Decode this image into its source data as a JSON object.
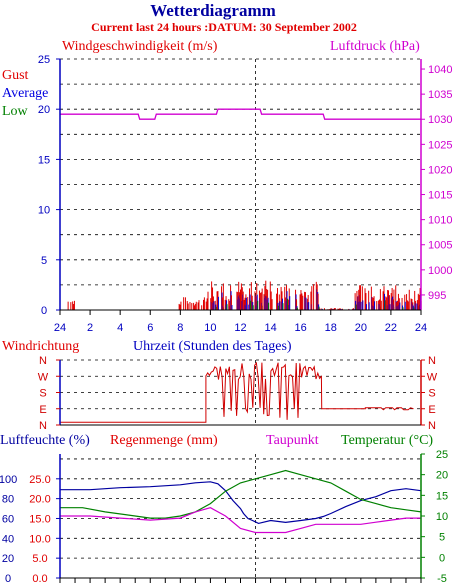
{
  "title": "Wetterdiagramm",
  "subtitle": "Current last 24 hours :DATUM: 30 September 2002",
  "colors": {
    "wind_gust": "#e00000",
    "wind_average": "#0000e0",
    "wind_low": "#008000",
    "pressure": "#d000d0",
    "direction": "#d00000",
    "humidity": "#0000a0",
    "rain": "#e00000",
    "dewpoint": "#d000d0",
    "temperature": "#008000",
    "axis_blue": "#0000c0",
    "axis_red": "#d00000"
  },
  "chart_data": [
    {
      "type": "line",
      "panel": "wind",
      "title_left": "Windgeschwindigkeit (m/s)",
      "title_right": "Luftdruck (hPa)",
      "legend": [
        "Gust",
        "Average",
        "Low"
      ],
      "x_ticks": [
        "24",
        "2",
        "4",
        "6",
        "8",
        "10",
        "12",
        "14",
        "16",
        "18",
        "20",
        "22",
        "24"
      ],
      "x_range": [
        0,
        24
      ],
      "ylim_left": [
        0,
        25
      ],
      "y_ticks_left": [
        "0",
        "5",
        "10",
        "15",
        "20",
        "25"
      ],
      "ylim_right": [
        992,
        1042
      ],
      "y_ticks_right": [
        "995",
        "1000",
        "1005",
        "1010",
        "1015",
        "1020",
        "1025",
        "1030",
        "1035",
        "1040"
      ],
      "grid": true,
      "series": [
        {
          "name": "Luftdruck",
          "axis": "right",
          "points": [
            [
              0,
              1031.0
            ],
            [
              5.2,
              1031.0
            ],
            [
              5.3,
              1030.0
            ],
            [
              6.3,
              1030.0
            ],
            [
              6.4,
              1031.0
            ],
            [
              10.4,
              1031.0
            ],
            [
              10.5,
              1032.0
            ],
            [
              13.3,
              1032.0
            ],
            [
              13.4,
              1031.0
            ],
            [
              17.5,
              1031.0
            ],
            [
              17.6,
              1030.0
            ],
            [
              24,
              1030.0
            ]
          ]
        }
      ]
    },
    {
      "type": "line",
      "panel": "direction",
      "title_left": "Windrichtung",
      "x_axis_label": "Uhrzeit (Stunden des Tages)",
      "categories": [
        "N",
        "W",
        "S",
        "E",
        "N"
      ],
      "grid": true
    },
    {
      "type": "line",
      "panel": "climate",
      "title_humidity": "Luftfeuchte (%)",
      "title_rain": "Regenmenge (mm)",
      "title_dewpoint": "Taupunkt",
      "title_temperature": "Temperatur (°C)",
      "y_ticks_humidity": [
        "0",
        "20",
        "40",
        "60",
        "80",
        "100"
      ],
      "y_ticks_rain": [
        "0.0",
        "5.0",
        "10.0",
        "15.0",
        "20.0",
        "25.0"
      ],
      "y_ticks_temperature": [
        "-5",
        "0",
        "5",
        "10",
        "15",
        "20",
        "25"
      ],
      "ylim_humidity": [
        0,
        125
      ],
      "ylim_temperature": [
        -5,
        25
      ],
      "grid": true,
      "series": [
        {
          "name": "Luftfeuchte",
          "axis": "humidity",
          "points": [
            [
              0,
              89
            ],
            [
              2,
              89
            ],
            [
              4,
              91
            ],
            [
              6,
              92
            ],
            [
              8,
              94
            ],
            [
              9,
              96
            ],
            [
              10,
              97
            ],
            [
              10.5,
              95
            ],
            [
              11,
              88
            ],
            [
              11.5,
              78
            ],
            [
              12,
              70
            ],
            [
              12.2,
              65
            ],
            [
              12.5,
              60
            ],
            [
              12.8,
              58
            ],
            [
              13.2,
              55
            ],
            [
              14,
              58
            ],
            [
              15,
              56
            ],
            [
              16,
              58
            ],
            [
              17,
              60
            ],
            [
              17.5,
              62
            ],
            [
              18,
              65
            ],
            [
              19,
              72
            ],
            [
              20,
              78
            ],
            [
              21,
              82
            ],
            [
              22,
              88
            ],
            [
              23,
              90
            ],
            [
              24,
              88
            ]
          ]
        },
        {
          "name": "Temperatur",
          "axis": "temperature",
          "points": [
            [
              0,
              12
            ],
            [
              1.5,
              12
            ],
            [
              3,
              11
            ],
            [
              5,
              10
            ],
            [
              6,
              9.5
            ],
            [
              7,
              9.5
            ],
            [
              8,
              10
            ],
            [
              9,
              11
            ],
            [
              10,
              13
            ],
            [
              11,
              16
            ],
            [
              12,
              18
            ],
            [
              13,
              19
            ],
            [
              14,
              20
            ],
            [
              15,
              21
            ],
            [
              16,
              20
            ],
            [
              17,
              19
            ],
            [
              18,
              18
            ],
            [
              19,
              16
            ],
            [
              20,
              14
            ],
            [
              21,
              13
            ],
            [
              22,
              12
            ],
            [
              23,
              11.5
            ],
            [
              24,
              11
            ]
          ]
        },
        {
          "name": "Taupunkt",
          "axis": "temperature",
          "points": [
            [
              0,
              10
            ],
            [
              2,
              10
            ],
            [
              4,
              9.5
            ],
            [
              6,
              9
            ],
            [
              8,
              9.5
            ],
            [
              9,
              11
            ],
            [
              10,
              12
            ],
            [
              11,
              10
            ],
            [
              12,
              7
            ],
            [
              13,
              6
            ],
            [
              14,
              6
            ],
            [
              15,
              6
            ],
            [
              16,
              7
            ],
            [
              17,
              8
            ],
            [
              18,
              8
            ],
            [
              19,
              8
            ],
            [
              20,
              8
            ],
            [
              21,
              8.5
            ],
            [
              22,
              9
            ],
            [
              23,
              9.5
            ],
            [
              24,
              9.5
            ]
          ]
        }
      ]
    }
  ]
}
